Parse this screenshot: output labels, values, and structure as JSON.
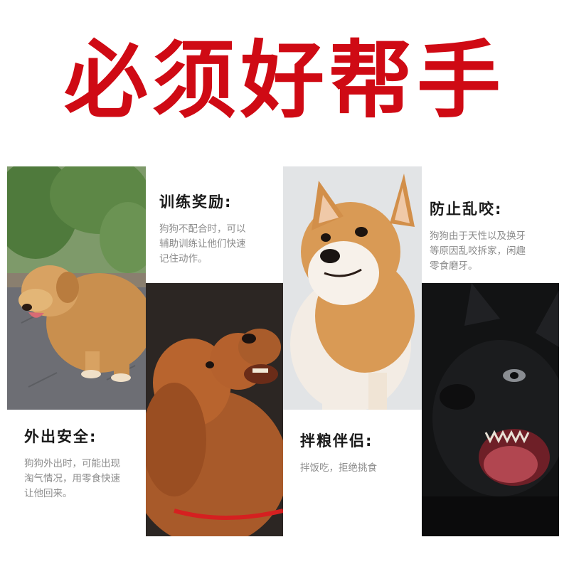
{
  "title": "必须好帮手",
  "colors": {
    "title": "#cf0a14",
    "heading": "#1a1a1a",
    "desc": "#8c8c8c"
  },
  "features": [
    {
      "heading": "训练奖励:",
      "desc_lines": [
        "狗狗不配合时，可以",
        "辅助训练让他们快速",
        "记住动作。"
      ]
    },
    {
      "heading": "防止乱咬:",
      "desc_lines": [
        "狗狗由于天性以及换牙",
        "等原因乱咬拆家，闲趣",
        "零食磨牙。"
      ]
    },
    {
      "heading": "外出安全:",
      "desc_lines": [
        "狗狗外出时，可能出现",
        "淘气情况，用零食快速",
        "让他回来。"
      ]
    },
    {
      "heading": "拌粮伴侣:",
      "desc_lines": [
        "拌饭吃，拒绝挑食"
      ]
    }
  ],
  "photos": [
    {
      "name": "golden-retriever-photo"
    },
    {
      "name": "poodle-photo"
    },
    {
      "name": "shiba-inu-photo"
    },
    {
      "name": "french-bulldog-photo"
    }
  ]
}
